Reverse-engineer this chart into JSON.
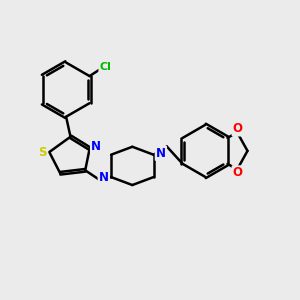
{
  "background_color": "#ebebeb",
  "bond_color": "#000000",
  "S_color": "#cccc00",
  "N_color": "#0000ff",
  "O_color": "#ff0000",
  "Cl_color": "#00bb00",
  "figsize": [
    3.0,
    3.0
  ],
  "dpi": 100,
  "xlim": [
    0,
    10
  ],
  "ylim": [
    0,
    10
  ]
}
